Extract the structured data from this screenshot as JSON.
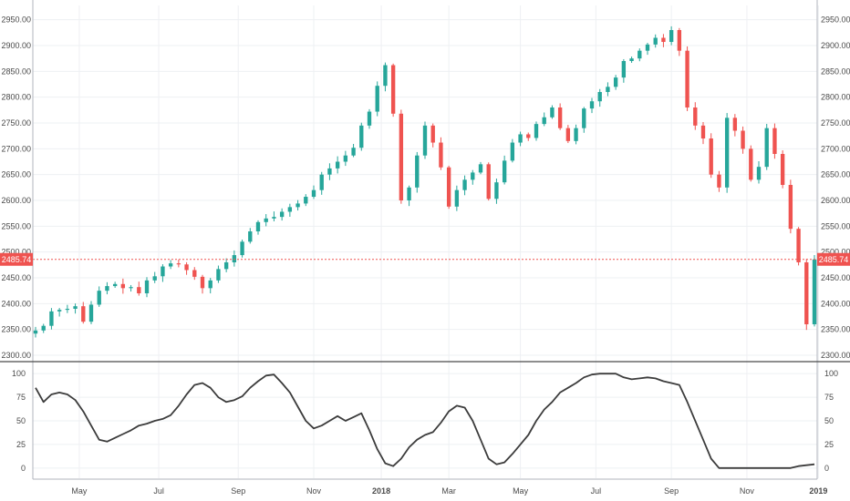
{
  "colors": {
    "up": "#26a69a",
    "down": "#ef5350",
    "grid": "#eef0f3",
    "axis": "#b2b5be",
    "separator": "#4a4a4a",
    "price_line": "#ef5350",
    "indicator_line": "#3c3c3c"
  },
  "current_price_label": "2485.74",
  "chart_data": [
    {
      "type": "candlestick",
      "title": "",
      "xlabel": "",
      "ylabel": "",
      "ylim": [
        2300,
        2960
      ],
      "y_ticks": [
        "2300.00",
        "2350.00",
        "2400.00",
        "2450.00",
        "2500.00",
        "2550.00",
        "2600.00",
        "2650.00",
        "2700.00",
        "2750.00",
        "2800.00",
        "2850.00",
        "2900.00",
        "2950.00"
      ],
      "x_ticks": [
        "May",
        "Jul",
        "Sep",
        "Nov",
        "2018",
        "Mar",
        "May",
        "Jul",
        "Sep",
        "Nov",
        "2019"
      ],
      "x_tick_weeks": [
        5.5,
        15.5,
        25.5,
        35,
        43.5,
        52,
        61,
        70.5,
        80,
        89.5,
        98.5
      ],
      "bold_ticks": [
        "2018",
        "2019"
      ],
      "current_price": 2485.74,
      "weekly_close": [
        2348,
        2357,
        2385,
        2388,
        2390,
        2395,
        2365,
        2398,
        2425,
        2434,
        2438,
        2430,
        2432,
        2420,
        2445,
        2453,
        2472,
        2478,
        2476,
        2465,
        2452,
        2430,
        2445,
        2467,
        2480,
        2494,
        2520,
        2540,
        2558,
        2565,
        2568,
        2578,
        2587,
        2594,
        2607,
        2620,
        2650,
        2662,
        2675,
        2687,
        2702,
        2745,
        2772,
        2822,
        2862,
        2768,
        2600,
        2625,
        2687,
        2745,
        2712,
        2664,
        2588,
        2620,
        2640,
        2654,
        2670,
        2603,
        2635,
        2677,
        2712,
        2728,
        2721,
        2748,
        2761,
        2780,
        2740,
        2715,
        2740,
        2778,
        2792,
        2810,
        2820,
        2838,
        2870,
        2875,
        2890,
        2902,
        2915,
        2907,
        2930,
        2890,
        2780,
        2745,
        2720,
        2650,
        2625,
        2760,
        2735,
        2700,
        2640,
        2665,
        2740,
        2690,
        2630,
        2545,
        2480,
        2360,
        2485.74
      ],
      "series_line": [
        {
          "name": "",
          "values": [
            85,
            70,
            78,
            80,
            78,
            72,
            60,
            45,
            30,
            28,
            32,
            36,
            40,
            45,
            47,
            50,
            52,
            56,
            66,
            78,
            88,
            90,
            85,
            75,
            70,
            72,
            76,
            85,
            92,
            98,
            99,
            90,
            80,
            65,
            50,
            42,
            45,
            50,
            55,
            50,
            54,
            58,
            40,
            20,
            5,
            2,
            10,
            22,
            30,
            35,
            38,
            48,
            60,
            66,
            64,
            50,
            30,
            10,
            4,
            6,
            15,
            25,
            35,
            50,
            62,
            70,
            80,
            85,
            90,
            96,
            99,
            100,
            100,
            100,
            96,
            94,
            95,
            96,
            95,
            92,
            90,
            88,
            70,
            50,
            30,
            10,
            0,
            0,
            0,
            0,
            0,
            0,
            0,
            0,
            0,
            0,
            2,
            3,
            4
          ]
        }
      ],
      "indicator_ylim": [
        -5,
        105
      ],
      "indicator_ticks": [
        "0",
        "25",
        "50",
        "75",
        "100"
      ]
    }
  ]
}
